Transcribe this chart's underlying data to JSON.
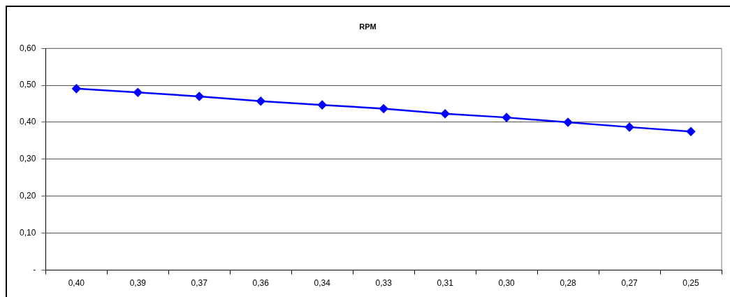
{
  "chart_data": {
    "type": "line",
    "title": "RPM",
    "categories": [
      "0,40",
      "0,39",
      "0,37",
      "0,36",
      "0,34",
      "0,33",
      "0,31",
      "0,30",
      "0,28",
      "0,27",
      "0,25"
    ],
    "series": [
      {
        "color": "#0000ff",
        "values": [
          0.491,
          0.481,
          0.47,
          0.457,
          0.447,
          0.437,
          0.423,
          0.413,
          0.4,
          0.387,
          0.375
        ]
      }
    ],
    "ylim": [
      0,
      0.6
    ],
    "yticks": [
      {
        "value": 0,
        "label": "-"
      },
      {
        "value": 0.1,
        "label": "0,10"
      },
      {
        "value": 0.2,
        "label": "0,20"
      },
      {
        "value": 0.3,
        "label": "0,30"
      },
      {
        "value": 0.4,
        "label": "0,40"
      },
      {
        "value": 0.5,
        "label": "0,50"
      },
      {
        "value": 0.6,
        "label": "0,60"
      }
    ],
    "grid": "y",
    "legend": false,
    "marker": "diamond",
    "line_style": "solid"
  }
}
